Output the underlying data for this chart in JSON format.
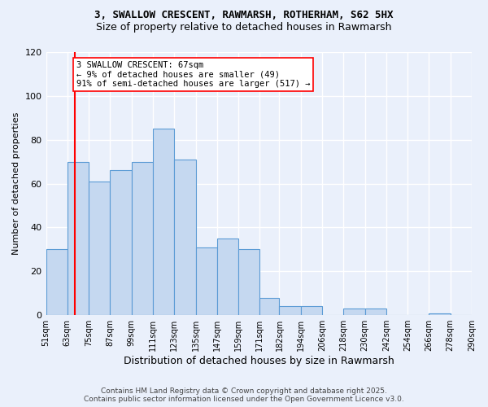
{
  "title_line1": "3, SWALLOW CRESCENT, RAWMARSH, ROTHERHAM, S62 5HX",
  "title_line2": "Size of property relative to detached houses in Rawmarsh",
  "xlabel": "Distribution of detached houses by size in Rawmarsh",
  "ylabel": "Number of detached properties",
  "bar_heights": [
    30,
    70,
    61,
    66,
    70,
    85,
    71,
    31,
    35,
    30,
    8,
    4,
    4,
    0,
    3,
    3,
    0,
    0,
    1,
    0
  ],
  "bar_color": "#c5d8f0",
  "bar_edge_color": "#5b9bd5",
  "property_line_x": 67,
  "bin_edges": [
    51,
    63,
    75,
    87,
    99,
    111,
    123,
    135,
    147,
    159,
    171,
    182,
    194,
    206,
    218,
    230,
    242,
    254,
    266,
    278,
    290
  ],
  "annotation_text": "3 SWALLOW CRESCENT: 67sqm\n← 9% of detached houses are smaller (49)\n91% of semi-detached houses are larger (517) →",
  "ylim": [
    0,
    120
  ],
  "yticks": [
    0,
    20,
    40,
    60,
    80,
    100,
    120
  ],
  "background_color": "#eaf0fb",
  "grid_color": "#ffffff",
  "footer_line1": "Contains HM Land Registry data © Crown copyright and database right 2025.",
  "footer_line2": "Contains public sector information licensed under the Open Government Licence v3.0."
}
